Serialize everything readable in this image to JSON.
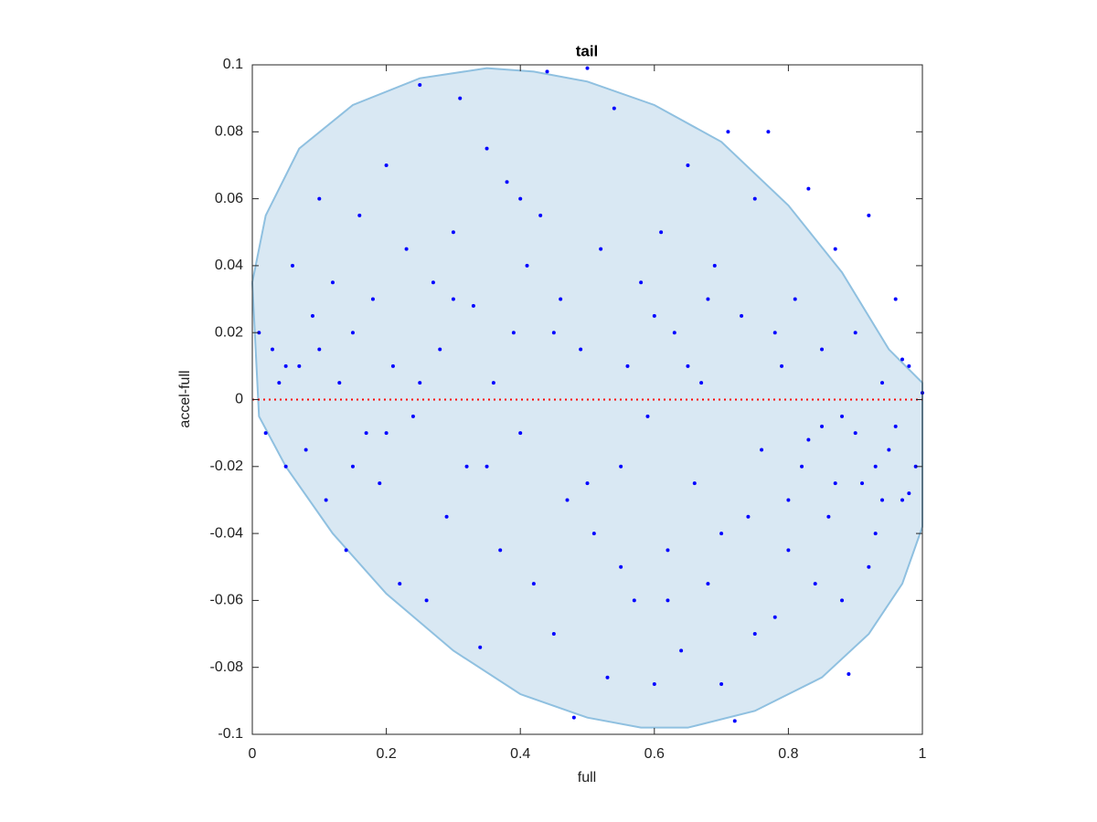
{
  "chart_data": {
    "type": "scatter",
    "title": "tail",
    "xlabel": "full",
    "ylabel": "accel-full",
    "xlim": [
      0,
      1
    ],
    "ylim": [
      -0.1,
      0.1
    ],
    "xticks": [
      0,
      0.2,
      0.4,
      0.6,
      0.8,
      1
    ],
    "yticks": [
      -0.1,
      -0.08,
      -0.06,
      -0.04,
      -0.02,
      0,
      0.02,
      0.04,
      0.06,
      0.08,
      0.1
    ],
    "color": "#0000ff",
    "x": [
      0.01,
      0.02,
      0.03,
      0.04,
      0.05,
      0.06,
      0.07,
      0.08,
      0.09,
      0.1,
      0.11,
      0.12,
      0.13,
      0.14,
      0.15,
      0.16,
      0.17,
      0.18,
      0.19,
      0.2,
      0.21,
      0.22,
      0.23,
      0.24,
      0.25,
      0.26,
      0.27,
      0.28,
      0.29,
      0.3,
      0.31,
      0.32,
      0.33,
      0.34,
      0.35,
      0.36,
      0.37,
      0.38,
      0.39,
      0.4,
      0.41,
      0.42,
      0.43,
      0.44,
      0.45,
      0.46,
      0.47,
      0.48,
      0.49,
      0.5,
      0.51,
      0.52,
      0.53,
      0.54,
      0.55,
      0.56,
      0.57,
      0.58,
      0.59,
      0.6,
      0.61,
      0.62,
      0.63,
      0.64,
      0.65,
      0.66,
      0.67,
      0.68,
      0.69,
      0.7,
      0.71,
      0.72,
      0.73,
      0.74,
      0.75,
      0.76,
      0.77,
      0.78,
      0.79,
      0.8,
      0.81,
      0.82,
      0.83,
      0.84,
      0.85,
      0.86,
      0.87,
      0.88,
      0.89,
      0.9,
      0.91,
      0.92,
      0.93,
      0.94,
      0.95,
      0.96,
      0.97,
      0.98,
      0.99,
      1.0,
      0.85,
      0.87,
      0.9,
      0.92,
      0.94,
      0.96,
      0.98,
      0.8,
      0.83,
      0.88,
      0.93,
      0.97,
      0.6,
      0.65,
      0.7,
      0.55,
      0.45,
      0.35,
      0.25,
      0.15,
      0.05,
      0.1,
      0.2,
      0.3,
      0.4,
      0.5,
      0.62,
      0.75,
      0.68,
      0.78
    ],
    "values": [
      0.02,
      -0.01,
      0.015,
      0.005,
      -0.02,
      0.04,
      0.01,
      -0.015,
      0.025,
      0.06,
      -0.03,
      0.035,
      0.005,
      -0.045,
      0.02,
      0.055,
      -0.01,
      0.03,
      -0.025,
      0.07,
      0.01,
      -0.055,
      0.045,
      -0.005,
      0.094,
      -0.06,
      0.035,
      0.015,
      -0.035,
      0.05,
      0.09,
      -0.02,
      0.028,
      -0.074,
      0.075,
      0.005,
      -0.045,
      0.065,
      0.02,
      -0.01,
      0.04,
      -0.055,
      0.055,
      0.098,
      -0.07,
      0.03,
      -0.03,
      -0.095,
      0.015,
      0.099,
      -0.04,
      0.045,
      -0.083,
      0.087,
      -0.02,
      0.01,
      -0.06,
      0.035,
      -0.005,
      -0.085,
      0.05,
      -0.045,
      0.02,
      -0.075,
      0.07,
      -0.025,
      0.005,
      -0.055,
      0.04,
      -0.085,
      0.08,
      -0.096,
      0.025,
      -0.035,
      0.06,
      -0.015,
      0.08,
      -0.065,
      0.01,
      -0.045,
      0.03,
      -0.02,
      0.063,
      -0.055,
      0.015,
      -0.035,
      0.045,
      -0.005,
      -0.082,
      0.02,
      -0.025,
      0.055,
      -0.04,
      0.005,
      -0.015,
      0.03,
      -0.03,
      0.01,
      -0.02,
      0.002,
      -0.008,
      -0.025,
      -0.01,
      -0.05,
      -0.03,
      -0.008,
      -0.028,
      -0.03,
      -0.012,
      -0.06,
      -0.02,
      0.012,
      0.025,
      0.01,
      -0.04,
      -0.05,
      0.02,
      -0.02,
      0.005,
      -0.02,
      0.01,
      0.015,
      -0.01,
      0.03,
      0.06,
      -0.025,
      -0.06,
      -0.07,
      0.03,
      0.02
    ],
    "region": {
      "color": "#d9e8f3",
      "edge_color": "#8fc0e0",
      "x": [
        0,
        0.02,
        0.07,
        0.15,
        0.25,
        0.35,
        0.42,
        0.5,
        0.6,
        0.7,
        0.8,
        0.88,
        0.95,
        1.0,
        1.0,
        0.97,
        0.92,
        0.85,
        0.75,
        0.65,
        0.58,
        0.5,
        0.4,
        0.3,
        0.2,
        0.12,
        0.05,
        0.01,
        0
      ],
      "y": [
        0.035,
        0.055,
        0.075,
        0.088,
        0.096,
        0.099,
        0.098,
        0.095,
        0.088,
        0.077,
        0.058,
        0.038,
        0.015,
        0.005,
        -0.038,
        -0.055,
        -0.07,
        -0.083,
        -0.093,
        -0.098,
        -0.098,
        -0.095,
        -0.088,
        -0.075,
        -0.058,
        -0.04,
        -0.02,
        -0.005,
        0.035
      ]
    },
    "reference_line": {
      "y": 0,
      "color": "#ff0000"
    }
  }
}
